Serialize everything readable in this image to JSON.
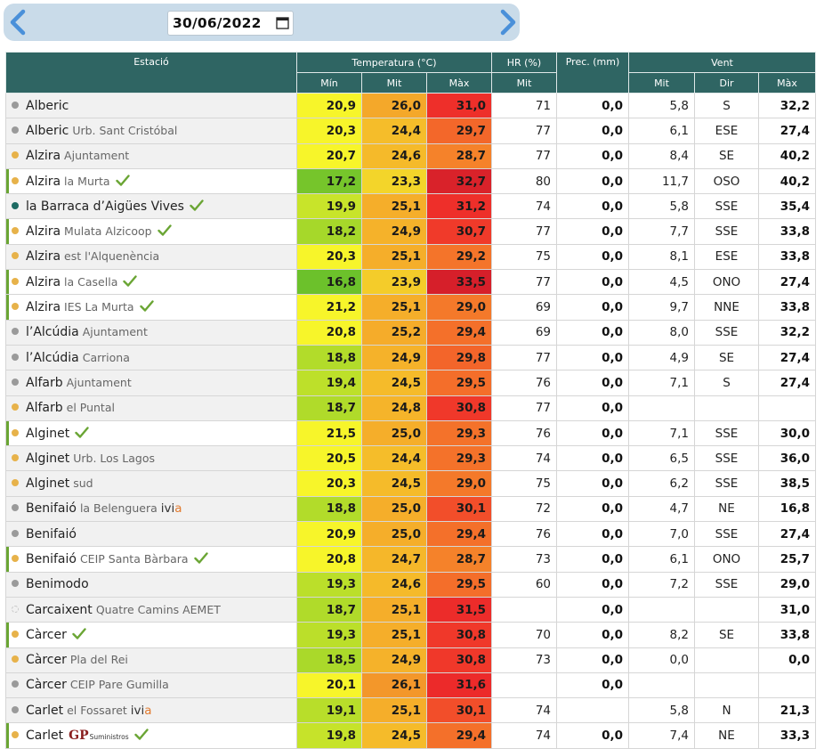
{
  "date": {
    "value": "30/06/2022"
  },
  "colors": {
    "header_bg": "#2f6563",
    "nav_arrow": "#4a90d9",
    "check": "#6aa534",
    "dot_orange": "#e7b24a",
    "dot_grey": "#9a9a9a",
    "dot_teal": "#1d6b63"
  },
  "icons": {
    "prev": "chevron-left-icon",
    "next": "chevron-right-icon",
    "calendar": "calendar-icon",
    "check": "check-icon"
  },
  "headers": {
    "station": "Estació",
    "temperature": "Temperatura (°C)",
    "hr": "HR (%)",
    "prec": "Prec. (mm)",
    "wind": "Vent",
    "min": "Mín",
    "mit": "Mit",
    "max": "Màx",
    "hr_mit": "Mit",
    "wind_mit": "Mit",
    "wind_dir": "Dir",
    "wind_max": "Màx"
  },
  "rows": [
    {
      "name": "Alberic",
      "sub": "",
      "dot": "grey",
      "check": false,
      "badge": "",
      "sel": false,
      "tmin": "20,9",
      "tmit": "26,0",
      "tmax": "31,0",
      "cmin": "#f7f52a",
      "cmit": "#f4a82a",
      "cmax": "#ee2f2a",
      "hr": "71",
      "prec": "0,0",
      "wmit": "5,8",
      "wdir": "S",
      "wmax": "32,2"
    },
    {
      "name": "Alberic",
      "sub": "Urb. Sant Cristóbal",
      "dot": "grey",
      "check": false,
      "badge": "",
      "sel": false,
      "tmin": "20,3",
      "tmit": "24,4",
      "tmax": "29,7",
      "cmin": "#f7f52a",
      "cmit": "#f5bd2a",
      "cmax": "#f3672a",
      "hr": "77",
      "prec": "0,0",
      "wmit": "6,1",
      "wdir": "ESE",
      "wmax": "27,4"
    },
    {
      "name": "Alzira",
      "sub": "Ajuntament",
      "dot": "orange",
      "check": false,
      "badge": "",
      "sel": false,
      "tmin": "20,7",
      "tmit": "24,6",
      "tmax": "28,7",
      "cmin": "#f7f52a",
      "cmit": "#f5ba2a",
      "cmax": "#f5822a",
      "hr": "77",
      "prec": "0,0",
      "wmit": "8,4",
      "wdir": "SE",
      "wmax": "40,2"
    },
    {
      "name": "Alzira",
      "sub": "la Murta",
      "dot": "orange",
      "check": true,
      "badge": "",
      "sel": true,
      "tmin": "17,2",
      "tmit": "23,3",
      "tmax": "32,7",
      "cmin": "#76c52b",
      "cmit": "#f3d52a",
      "cmax": "#d9222a",
      "hr": "80",
      "prec": "0,0",
      "wmit": "11,7",
      "wdir": "OSO",
      "wmax": "40,2"
    },
    {
      "name": "la Barraca d’Aigües Vives",
      "sub": "",
      "dot": "teal",
      "check": true,
      "badge": "",
      "sel": false,
      "tmin": "19,9",
      "tmit": "25,1",
      "tmax": "31,2",
      "cmin": "#c8e42a",
      "cmit": "#f5ae2a",
      "cmax": "#ee2f2a",
      "hr": "74",
      "prec": "0,0",
      "wmit": "5,8",
      "wdir": "SSE",
      "wmax": "35,4"
    },
    {
      "name": "Alzira",
      "sub": "Mulata Alzicoop",
      "dot": "orange",
      "check": true,
      "badge": "",
      "sel": true,
      "tmin": "18,2",
      "tmit": "24,9",
      "tmax": "30,7",
      "cmin": "#a6d82a",
      "cmit": "#f5b22a",
      "cmax": "#f03a2a",
      "hr": "77",
      "prec": "0,0",
      "wmit": "7,7",
      "wdir": "SSE",
      "wmax": "33,8"
    },
    {
      "name": "Alzira",
      "sub": "est l'Alquenència",
      "dot": "orange",
      "check": false,
      "badge": "",
      "sel": false,
      "tmin": "20,3",
      "tmit": "25,1",
      "tmax": "29,2",
      "cmin": "#f7f52a",
      "cmit": "#f5ae2a",
      "cmax": "#f4742a",
      "hr": "75",
      "prec": "0,0",
      "wmit": "8,1",
      "wdir": "ESE",
      "wmax": "33,8"
    },
    {
      "name": "Alzira",
      "sub": "la Casella",
      "dot": "orange",
      "check": true,
      "badge": "",
      "sel": true,
      "tmin": "16,8",
      "tmit": "23,9",
      "tmax": "33,5",
      "cmin": "#6cc12b",
      "cmit": "#f4cc2a",
      "cmax": "#d61f2a",
      "hr": "77",
      "prec": "0,0",
      "wmit": "4,5",
      "wdir": "ONO",
      "wmax": "27,4"
    },
    {
      "name": "Alzira",
      "sub": "IES La Murta",
      "dot": "orange",
      "check": true,
      "badge": "",
      "sel": true,
      "tmin": "21,2",
      "tmit": "25,1",
      "tmax": "29,0",
      "cmin": "#f7f52a",
      "cmit": "#f5ae2a",
      "cmax": "#f4792a",
      "hr": "69",
      "prec": "0,0",
      "wmit": "9,7",
      "wdir": "NNE",
      "wmax": "33,8"
    },
    {
      "name": "l’Alcúdia",
      "sub": "Ajuntament",
      "dot": "grey",
      "check": false,
      "badge": "",
      "sel": false,
      "tmin": "20,8",
      "tmit": "25,2",
      "tmax": "29,4",
      "cmin": "#f7f52a",
      "cmit": "#f5ac2a",
      "cmax": "#f4702a",
      "hr": "69",
      "prec": "0,0",
      "wmit": "8,0",
      "wdir": "SSE",
      "wmax": "32,2"
    },
    {
      "name": "l’Alcúdia",
      "sub": "Carriona",
      "dot": "grey",
      "check": false,
      "badge": "",
      "sel": false,
      "tmin": "18,8",
      "tmit": "24,9",
      "tmax": "29,8",
      "cmin": "#b2dc2a",
      "cmit": "#f5b22a",
      "cmax": "#f3652a",
      "hr": "77",
      "prec": "0,0",
      "wmit": "4,9",
      "wdir": "SE",
      "wmax": "27,4"
    },
    {
      "name": "Alfarb",
      "sub": "Ajuntament",
      "dot": "grey",
      "check": false,
      "badge": "",
      "sel": false,
      "tmin": "19,4",
      "tmit": "24,5",
      "tmax": "29,5",
      "cmin": "#bde02a",
      "cmit": "#f5bb2a",
      "cmax": "#f46e2a",
      "hr": "76",
      "prec": "0,0",
      "wmit": "7,1",
      "wdir": "S",
      "wmax": "27,4"
    },
    {
      "name": "Alfarb",
      "sub": "el Puntal",
      "dot": "orange",
      "check": false,
      "badge": "",
      "sel": false,
      "tmin": "18,7",
      "tmit": "24,8",
      "tmax": "30,8",
      "cmin": "#b0db2a",
      "cmit": "#f5b42a",
      "cmax": "#f0382a",
      "hr": "77",
      "prec": "0,0",
      "wmit": "",
      "wdir": "",
      "wmax": ""
    },
    {
      "name": "Alginet",
      "sub": "",
      "dot": "orange",
      "check": true,
      "badge": "",
      "sel": true,
      "tmin": "21,5",
      "tmit": "25,0",
      "tmax": "29,3",
      "cmin": "#f7f52a",
      "cmit": "#f5ae2a",
      "cmax": "#f4722a",
      "hr": "76",
      "prec": "0,0",
      "wmit": "7,1",
      "wdir": "SSE",
      "wmax": "30,0"
    },
    {
      "name": "Alginet",
      "sub": "Urb. Los Lagos",
      "dot": "orange",
      "check": false,
      "badge": "",
      "sel": false,
      "tmin": "20,5",
      "tmit": "24,4",
      "tmax": "29,3",
      "cmin": "#f7f52a",
      "cmit": "#f5bd2a",
      "cmax": "#f4722a",
      "hr": "74",
      "prec": "0,0",
      "wmit": "6,5",
      "wdir": "SSE",
      "wmax": "36,0"
    },
    {
      "name": "Alginet",
      "sub": "sud",
      "dot": "orange",
      "check": false,
      "badge": "",
      "sel": false,
      "tmin": "20,3",
      "tmit": "24,5",
      "tmax": "29,0",
      "cmin": "#f7f52a",
      "cmit": "#f5bb2a",
      "cmax": "#f4792a",
      "hr": "75",
      "prec": "0,0",
      "wmit": "6,2",
      "wdir": "SSE",
      "wmax": "38,5"
    },
    {
      "name": "Benifaió",
      "sub": "la Belenguera",
      "dot": "grey",
      "check": false,
      "badge": "ivia",
      "sel": false,
      "tmin": "18,8",
      "tmit": "25,0",
      "tmax": "30,1",
      "cmin": "#b2dc2a",
      "cmit": "#f5ae2a",
      "cmax": "#f24e2a",
      "hr": "72",
      "prec": "0,0",
      "wmit": "4,7",
      "wdir": "NE",
      "wmax": "16,8"
    },
    {
      "name": "Benifaió",
      "sub": "",
      "dot": "grey",
      "check": false,
      "badge": "",
      "sel": false,
      "tmin": "20,9",
      "tmit": "25,0",
      "tmax": "29,4",
      "cmin": "#f7f52a",
      "cmit": "#f5ae2a",
      "cmax": "#f4702a",
      "hr": "76",
      "prec": "0,0",
      "wmit": "7,0",
      "wdir": "SSE",
      "wmax": "27,4"
    },
    {
      "name": "Benifaió",
      "sub": "CEIP Santa Bàrbara",
      "dot": "orange",
      "check": true,
      "badge": "",
      "sel": true,
      "tmin": "20,8",
      "tmit": "24,7",
      "tmax": "28,7",
      "cmin": "#f7f52a",
      "cmit": "#f5b72a",
      "cmax": "#f5822a",
      "hr": "73",
      "prec": "0,0",
      "wmit": "6,1",
      "wdir": "ONO",
      "wmax": "25,7"
    },
    {
      "name": "Benimodo",
      "sub": "",
      "dot": "grey",
      "check": false,
      "badge": "",
      "sel": false,
      "tmin": "19,3",
      "tmit": "24,6",
      "tmax": "29,5",
      "cmin": "#bbdf2a",
      "cmit": "#f5ba2a",
      "cmax": "#f46e2a",
      "hr": "60",
      "prec": "0,0",
      "wmit": "7,2",
      "wdir": "SSE",
      "wmax": "29,0"
    },
    {
      "name": "Carcaixent",
      "sub": "Quatre Camins AEMET",
      "dot": "empty",
      "check": false,
      "badge": "",
      "sel": false,
      "tmin": "18,7",
      "tmit": "25,1",
      "tmax": "31,5",
      "cmin": "#b0db2a",
      "cmit": "#f5ae2a",
      "cmax": "#ec2c2a",
      "hr": "",
      "prec": "0,0",
      "wmit": "",
      "wdir": "",
      "wmax": "31,0"
    },
    {
      "name": "Càrcer",
      "sub": "",
      "dot": "orange",
      "check": true,
      "badge": "",
      "sel": true,
      "tmin": "19,3",
      "tmit": "25,1",
      "tmax": "30,8",
      "cmin": "#bbdf2a",
      "cmit": "#f5ae2a",
      "cmax": "#f0382a",
      "hr": "70",
      "prec": "0,0",
      "wmit": "8,2",
      "wdir": "SE",
      "wmax": "33,8"
    },
    {
      "name": "Càrcer",
      "sub": "Pla del Rei",
      "dot": "orange",
      "check": false,
      "badge": "",
      "sel": false,
      "tmin": "18,5",
      "tmit": "24,9",
      "tmax": "30,8",
      "cmin": "#aad92a",
      "cmit": "#f5b22a",
      "cmax": "#f0382a",
      "hr": "73",
      "prec": "0,0",
      "wmit": "0,0",
      "wdir": "",
      "wmax": "0,0"
    },
    {
      "name": "Càrcer",
      "sub": "CEIP Pare Gumilla",
      "dot": "grey",
      "check": false,
      "badge": "",
      "sel": false,
      "tmin": "20,1",
      "tmit": "26,1",
      "tmax": "31,6",
      "cmin": "#f7f52a",
      "cmit": "#f3972a",
      "cmax": "#ec2a2a",
      "hr": "",
      "prec": "0,0",
      "wmit": "",
      "wdir": "",
      "wmax": ""
    },
    {
      "name": "Carlet",
      "sub": "el Fossaret",
      "dot": "grey",
      "check": false,
      "badge": "ivia",
      "sel": false,
      "tmin": "19,1",
      "tmit": "25,1",
      "tmax": "30,1",
      "cmin": "#b8de2a",
      "cmit": "#f5ae2a",
      "cmax": "#f24e2a",
      "hr": "74",
      "prec": "",
      "wmit": "5,8",
      "wdir": "N",
      "wmax": "21,3"
    },
    {
      "name": "Carlet",
      "sub": "",
      "dot": "orange",
      "check": true,
      "badge": "gp",
      "sel": true,
      "tmin": "19,8",
      "tmit": "24,5",
      "tmax": "29,4",
      "cmin": "#c6e32a",
      "cmit": "#f5bb2a",
      "cmax": "#f4702a",
      "hr": "74",
      "prec": "0,0",
      "wmit": "7,4",
      "wdir": "NE",
      "wmax": "33,3"
    }
  ],
  "badges": {
    "ivia_main": "ivi",
    "ivia_a": "a",
    "gp_main": "GP",
    "gp_sub": "Suministros"
  }
}
